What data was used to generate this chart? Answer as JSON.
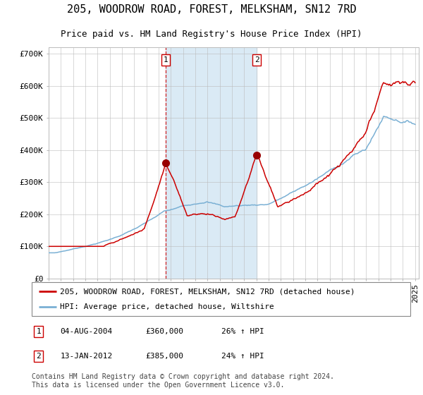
{
  "title": "205, WOODROW ROAD, FOREST, MELKSHAM, SN12 7RD",
  "subtitle": "Price paid vs. HM Land Registry's House Price Index (HPI)",
  "ylim": [
    0,
    720000
  ],
  "yticks": [
    0,
    100000,
    200000,
    300000,
    400000,
    500000,
    600000,
    700000
  ],
  "ytick_labels": [
    "£0",
    "£100K",
    "£200K",
    "£300K",
    "£400K",
    "£500K",
    "£600K",
    "£700K"
  ],
  "x_start_year": 1995,
  "x_end_year": 2025,
  "hpi_color": "#7ab0d4",
  "price_color": "#cc0000",
  "marker_color": "#990000",
  "bg_color": "#ffffff",
  "grid_color": "#bbbbbb",
  "shading_color": "#daeaf5",
  "sale1_year": 2004.58,
  "sale1_price": 360000,
  "sale2_year": 2012.04,
  "sale2_price": 385000,
  "legend_house_label": "205, WOODROW ROAD, FOREST, MELKSHAM, SN12 7RD (detached house)",
  "legend_hpi_label": "HPI: Average price, detached house, Wiltshire",
  "table_row1": [
    "1",
    "04-AUG-2004",
    "£360,000",
    "26% ↑ HPI"
  ],
  "table_row2": [
    "2",
    "13-JAN-2012",
    "£385,000",
    "24% ↑ HPI"
  ],
  "footnote": "Contains HM Land Registry data © Crown copyright and database right 2024.\nThis data is licensed under the Open Government Licence v3.0.",
  "title_fontsize": 11,
  "subtitle_fontsize": 9,
  "tick_fontsize": 8,
  "legend_fontsize": 8,
  "table_fontsize": 8,
  "footnote_fontsize": 7
}
